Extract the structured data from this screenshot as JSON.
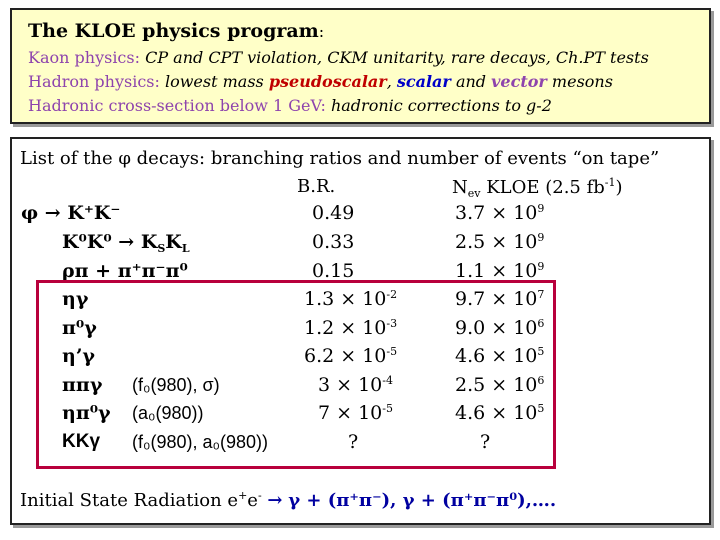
{
  "header": {
    "title": "The KLOE physics program",
    "title_suffix": ":",
    "kaon": {
      "label": "Kaon physics: ",
      "topics": "CP and CPT violation, CKM unitarity, rare decays, Ch.PT tests"
    },
    "hadron": {
      "label": "Hadron physics: ",
      "pre": "lowest mass ",
      "pseudoscalar": "pseudoscalar",
      "comma": ", ",
      "scalar": "scalar",
      "and": " and ",
      "vector": "vector",
      "mesons": " mesons"
    },
    "xsec": {
      "label": "Hadronic cross-section below 1 GeV: ",
      "topic": "hadronic corrections to g-2"
    }
  },
  "decays": {
    "intro": "List of the φ decays: branching ratios and number of events “on tape”",
    "col_br": "B.R.",
    "col_nev": "N",
    "col_nev_sub": "ev",
    "col_kloe": " KLOE (2.5 fb",
    "col_kloe_sup": "-1",
    "col_kloe_end": ")",
    "rows": [
      {
        "channel": "φ → K⁺K⁻",
        "note": "",
        "br": "0.49",
        "nev": "3.7 × 10",
        "nev_exp": "9"
      },
      {
        "channel": "K⁰K⁰  → K",
        "channel_sub": "S",
        "channel_end": "K",
        "channel_sub2": "L",
        "note": "",
        "br": "0.33",
        "nev": "2.5 × 10",
        "nev_exp": "9"
      },
      {
        "channel": "ρπ + π⁺π⁻π⁰",
        "note": "",
        "br": "0.15",
        "nev": "1.1 × 10",
        "nev_exp": "9"
      },
      {
        "channel": "ηγ",
        "note": "",
        "br": "1.3 × 10",
        "br_exp": "-2",
        "nev": "9.7 × 10",
        "nev_exp": "7"
      },
      {
        "channel": "π⁰γ",
        "note": "",
        "br": "1.2 × 10",
        "br_exp": "-3",
        "nev": "9.0 × 10",
        "nev_exp": "6"
      },
      {
        "channel": "η’γ",
        "note": "",
        "br": "6.2 × 10",
        "br_exp": "-5",
        "nev": "4.6 × 10",
        "nev_exp": "5"
      },
      {
        "channel": "ππγ",
        "note": "(f₀(980), σ)",
        "br": "3 × 10",
        "br_exp": "-4",
        "nev": "2.5 × 10",
        "nev_exp": "6"
      },
      {
        "channel": "ηπ⁰γ",
        "note": "(a₀(980))",
        "br": "7 × 10",
        "br_exp": "-5",
        "nev": "4.6 × 10",
        "nev_exp": "5"
      },
      {
        "channel": "KKγ",
        "note": "(f₀(980), a₀(980))",
        "br": "?",
        "nev": "?"
      }
    ],
    "isr_label": "Initial State Radiation e",
    "isr_e_plus": "+",
    "isr_e": "e",
    "isr_e_minus": "-",
    "isr_arrow": "→",
    "isr_formula": "γ + (π⁺π⁻), γ + (π⁺π⁻π⁰),…."
  }
}
